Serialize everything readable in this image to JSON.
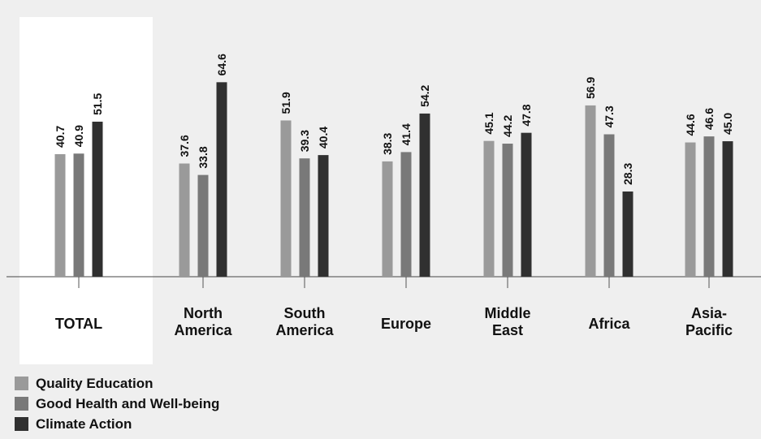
{
  "chart_data": {
    "type": "bar",
    "categories": [
      [
        "TOTAL"
      ],
      [
        "North",
        "America"
      ],
      [
        "South",
        "America"
      ],
      [
        "Europe"
      ],
      [
        "Middle",
        "East"
      ],
      [
        "Africa"
      ],
      [
        "Asia-",
        "Pacific"
      ]
    ],
    "series": [
      {
        "name": "Quality Education",
        "color": "#9a9a9a",
        "values": [
          40.7,
          37.6,
          51.9,
          38.3,
          45.1,
          56.9,
          44.6
        ]
      },
      {
        "name": "Good Health and Well-being",
        "color": "#797979",
        "values": [
          40.9,
          33.8,
          39.3,
          41.4,
          44.2,
          47.3,
          46.6
        ]
      },
      {
        "name": "Climate Action",
        "color": "#303030",
        "values": [
          51.5,
          64.6,
          40.4,
          54.2,
          47.8,
          28.3,
          45.0
        ]
      }
    ],
    "ylim": [
      0,
      75
    ],
    "highlighted_category": "TOTAL",
    "grid": false,
    "legend_position": "bottom-left"
  }
}
